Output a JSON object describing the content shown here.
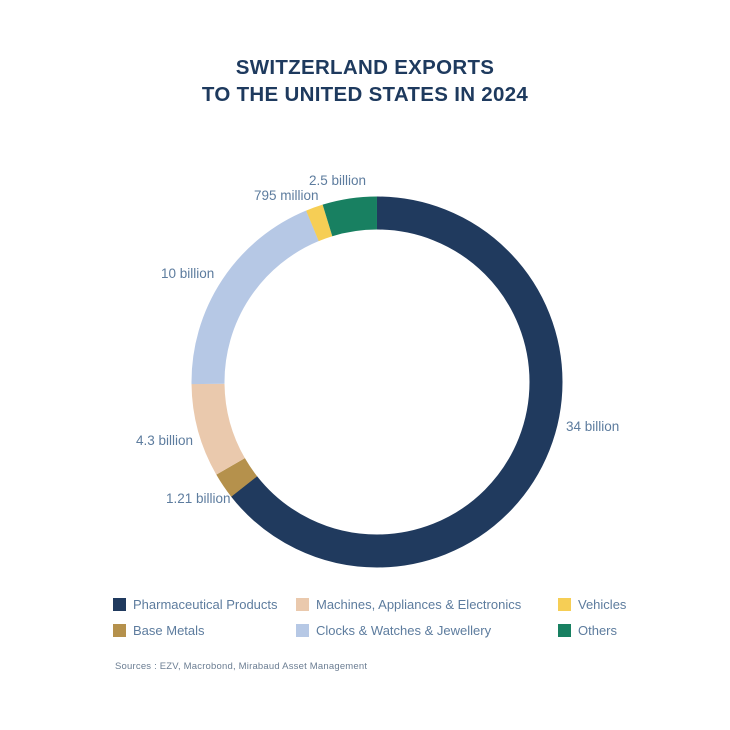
{
  "title": {
    "line1": "SWITZERLAND EXPORTS",
    "line2": "TO THE UNITED STATES IN 2024"
  },
  "chart_data": {
    "type": "pie",
    "subtype": "donut",
    "title": "Switzerland exports to the United States in 2024",
    "direction": "clockwise",
    "start_angle_deg_from_top": 0,
    "values_unit": "billions",
    "slices": [
      {
        "name": "Pharmaceutical Products",
        "value": 34,
        "value_label": "34 billion",
        "color": "#203a5e"
      },
      {
        "name": "Base Metals",
        "value": 1.21,
        "value_label": "1.21 billion",
        "color": "#b5914c"
      },
      {
        "name": "Machines, Appliances & Electronics",
        "value": 4.3,
        "value_label": "4.3 billion",
        "color": "#eac9ad"
      },
      {
        "name": "Clocks & Watches & Jewellery",
        "value": 10,
        "value_label": "10 billion",
        "color": "#b6c8e5"
      },
      {
        "name": "Vehicles",
        "value": 0.795,
        "value_label": "795 million",
        "color": "#f6ce55"
      },
      {
        "name": "Others",
        "value": 2.5,
        "value_label": "2.5 billion",
        "color": "#188061"
      }
    ],
    "legend_position": "bottom",
    "legend_order": [
      0,
      2,
      4,
      1,
      3,
      5
    ]
  },
  "footer": {
    "sources": "Sources : EZV, Macrobond, Mirabaud Asset Management"
  }
}
